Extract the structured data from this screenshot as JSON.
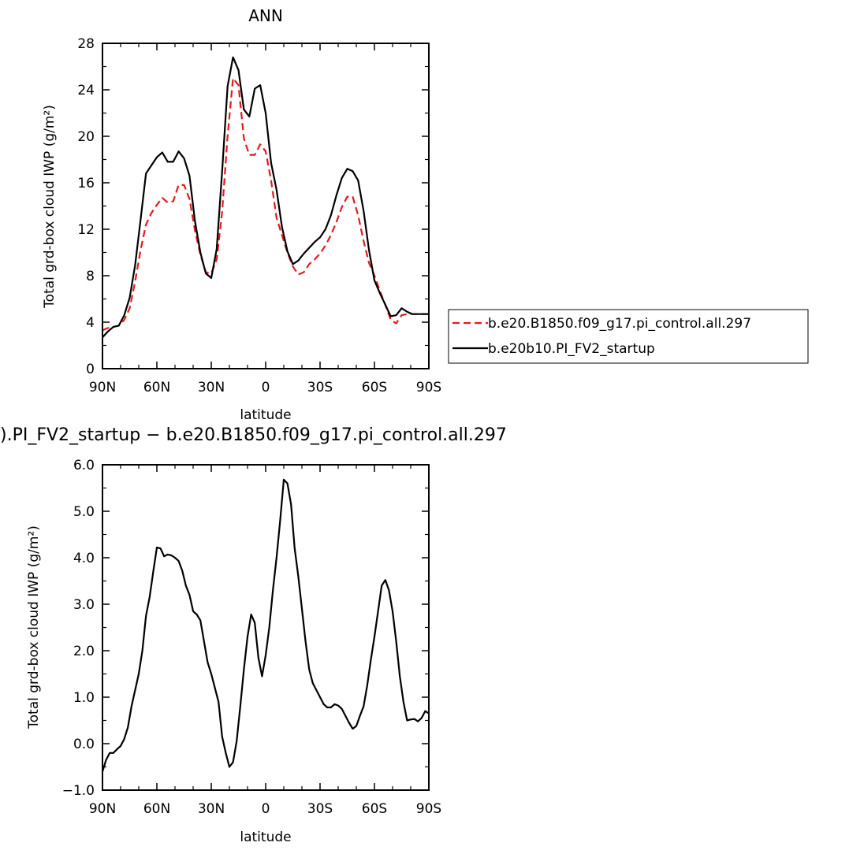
{
  "chart_data": [
    {
      "type": "line",
      "title": "ANN",
      "xlabel": "latitude",
      "ylabel": "Total grd-box cloud IWP (g/m²)",
      "xlim": [
        90,
        -90
      ],
      "ylim": [
        0,
        28
      ],
      "xticks": [
        90,
        60,
        30,
        0,
        -30,
        -60,
        -90
      ],
      "xtick_labels": [
        "90N",
        "60N",
        "30N",
        "0",
        "30S",
        "60S",
        "90S"
      ],
      "yticks": [
        0,
        4,
        8,
        12,
        16,
        20,
        24,
        28
      ],
      "ytick_labels": [
        "0",
        "4",
        "8",
        "12",
        "16",
        "20",
        "24",
        "28"
      ],
      "legend_position": "right",
      "series": [
        {
          "name": "b.e20.B1850.f09_g17.pi_control.all.297",
          "color": "#e41a1c",
          "dash": "dashed",
          "x": [
            90,
            87,
            84,
            81,
            78,
            75,
            72,
            69,
            66,
            63,
            60,
            57,
            54,
            51,
            48,
            45,
            42,
            39,
            36,
            33,
            30,
            27,
            24,
            21,
            18,
            15,
            12,
            9,
            6,
            3,
            0,
            -3,
            -6,
            -9,
            -12,
            -15,
            -18,
            -21,
            -24,
            -27,
            -30,
            -33,
            -36,
            -39,
            -42,
            -45,
            -48,
            -51,
            -54,
            -57,
            -60,
            -63,
            -66,
            -69,
            -72,
            -75,
            -78,
            -81,
            -84,
            -87,
            -90
          ],
          "y": [
            3.3,
            3.5,
            3.6,
            3.7,
            4.2,
            5.2,
            7.5,
            10.2,
            12.4,
            13.4,
            14.1,
            14.7,
            14.3,
            14.4,
            15.8,
            15.8,
            14.6,
            11.9,
            9.8,
            8.3,
            8.2,
            9.4,
            13.5,
            20.0,
            25.0,
            24.4,
            19.8,
            18.4,
            18.4,
            19.3,
            18.7,
            16.2,
            13.0,
            11.5,
            10.0,
            8.8,
            8.1,
            8.3,
            9.0,
            9.4,
            9.9,
            10.6,
            11.5,
            12.6,
            13.9,
            14.8,
            14.8,
            13.2,
            11.0,
            9.1,
            8.0,
            6.7,
            5.5,
            4.2,
            3.9,
            4.6,
            4.7,
            4.7,
            4.7,
            4.7,
            4.7
          ]
        },
        {
          "name": "b.e20b10.PI_FV2_startup",
          "color": "#000000",
          "dash": "solid",
          "x": [
            90,
            87,
            84,
            81,
            78,
            75,
            72,
            69,
            66,
            63,
            60,
            57,
            54,
            51,
            48,
            45,
            42,
            39,
            36,
            33,
            30,
            27,
            24,
            21,
            18,
            15,
            12,
            9,
            6,
            3,
            0,
            -3,
            -6,
            -9,
            -12,
            -15,
            -18,
            -21,
            -24,
            -27,
            -30,
            -33,
            -36,
            -39,
            -42,
            -45,
            -48,
            -51,
            -54,
            -57,
            -60,
            -63,
            -66,
            -69,
            -72,
            -75,
            -78,
            -81,
            -84,
            -87,
            -90
          ],
          "y": [
            2.7,
            3.2,
            3.6,
            3.7,
            4.6,
            6.1,
            8.9,
            12.8,
            16.8,
            17.5,
            18.2,
            18.6,
            17.8,
            17.8,
            18.7,
            18.1,
            16.6,
            12.7,
            10.0,
            8.2,
            7.8,
            10.3,
            17.0,
            24.3,
            26.8,
            25.7,
            22.3,
            21.7,
            24.1,
            24.4,
            22.0,
            17.7,
            15.4,
            12.2,
            10.1,
            9.0,
            9.3,
            9.9,
            10.4,
            10.9,
            11.3,
            12.0,
            13.2,
            14.9,
            16.4,
            17.2,
            17.0,
            16.2,
            13.6,
            10.2,
            7.6,
            6.5,
            5.5,
            4.5,
            4.6,
            5.2,
            4.9,
            4.7,
            4.7,
            4.7,
            4.7
          ]
        }
      ]
    },
    {
      "type": "line",
      "title": ").PI_FV2_startup − b.e20.B1850.f09_g17.pi_control.all.297",
      "xlabel": "latitude",
      "ylabel": "Total grd-box cloud IWP (g/m²)",
      "xlim": [
        90,
        -90
      ],
      "ylim": [
        -1,
        6
      ],
      "xticks": [
        90,
        60,
        30,
        0,
        -30,
        -60,
        -90
      ],
      "xtick_labels": [
        "90N",
        "60N",
        "30N",
        "0",
        "30S",
        "60S",
        "90S"
      ],
      "yticks": [
        -1,
        0,
        1,
        2,
        3,
        4,
        5,
        6
      ],
      "ytick_labels": [
        "−1.0",
        "0.0",
        "1.0",
        "2.0",
        "3.0",
        "4.0",
        "5.0",
        "6.0"
      ],
      "series": [
        {
          "name": "",
          "color": "#000000",
          "dash": "solid",
          "x": [
            90,
            88,
            86,
            84,
            82,
            80,
            78,
            76,
            74,
            72,
            70,
            68,
            66,
            64,
            62,
            60,
            58,
            56,
            54,
            52,
            50,
            48,
            46,
            44,
            42,
            40,
            38,
            36,
            34,
            32,
            30,
            28,
            26,
            24,
            22,
            20,
            18,
            16,
            14,
            12,
            10,
            8,
            6,
            4,
            2,
            0,
            -2,
            -4,
            -6,
            -8,
            -10,
            -12,
            -14,
            -16,
            -18,
            -20,
            -22,
            -24,
            -26,
            -28,
            -30,
            -32,
            -34,
            -36,
            -38,
            -40,
            -42,
            -44,
            -46,
            -48,
            -50,
            -52,
            -54,
            -56,
            -58,
            -60,
            -62,
            -64,
            -66,
            -68,
            -70,
            -72,
            -74,
            -76,
            -78,
            -80,
            -82,
            -84,
            -86,
            -88,
            -90
          ],
          "y": [
            -0.6,
            -0.35,
            -0.2,
            -0.2,
            -0.12,
            -0.05,
            0.1,
            0.35,
            0.8,
            1.15,
            1.5,
            2.0,
            2.75,
            3.15,
            3.7,
            4.22,
            4.2,
            4.03,
            4.07,
            4.05,
            4.0,
            3.93,
            3.72,
            3.4,
            3.2,
            2.85,
            2.78,
            2.65,
            2.2,
            1.75,
            1.5,
            1.2,
            0.9,
            0.15,
            -0.2,
            -0.5,
            -0.4,
            0.05,
            0.8,
            1.6,
            2.3,
            2.78,
            2.6,
            1.85,
            1.45,
            1.9,
            2.5,
            3.3,
            4.0,
            4.8,
            5.68,
            5.6,
            5.15,
            4.2,
            3.6,
            2.9,
            2.2,
            1.6,
            1.3,
            1.15,
            1.0,
            0.85,
            0.78,
            0.78,
            0.85,
            0.82,
            0.75,
            0.6,
            0.45,
            0.32,
            0.38,
            0.6,
            0.8,
            1.25,
            1.8,
            2.3,
            2.85,
            3.4,
            3.52,
            3.3,
            2.85,
            2.2,
            1.45,
            0.9,
            0.5,
            0.52,
            0.53,
            0.48,
            0.55,
            0.7,
            0.65
          ]
        }
      ]
    }
  ]
}
